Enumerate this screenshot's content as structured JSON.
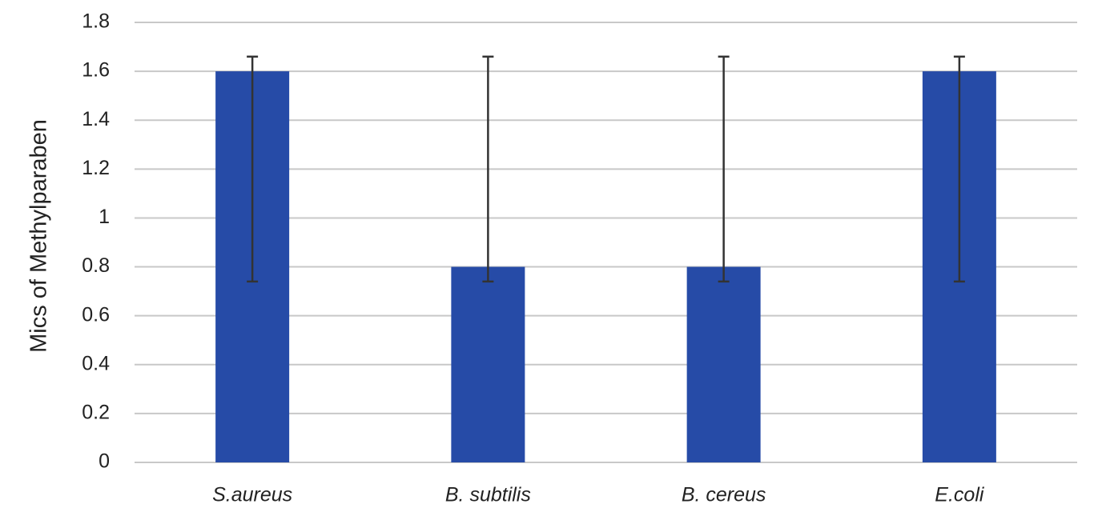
{
  "chart_data": {
    "type": "bar",
    "title": "",
    "xlabel": "",
    "ylabel": "Mics of Methylparaben",
    "categories": [
      "S.aureus",
      "B. subtilis",
      "B. cereus",
      "E.coli"
    ],
    "series": [
      {
        "values": [
          1.6,
          0.8,
          0.8,
          1.6
        ],
        "error_low": [
          0.74,
          0.74,
          0.74,
          0.74
        ],
        "error_high": [
          1.66,
          1.66,
          1.66,
          1.66
        ]
      }
    ],
    "ylim": [
      0,
      1.8
    ],
    "yticks": [
      "0",
      "0.2",
      "0.4",
      "0.6",
      "0.8",
      "1",
      "1.2",
      "1.4",
      "1.6",
      "1.8"
    ],
    "grid": true,
    "legend": "none",
    "colors": {
      "bar": "#264BA7",
      "grid": "#C8C8C8",
      "error_bar": "#333333"
    }
  }
}
